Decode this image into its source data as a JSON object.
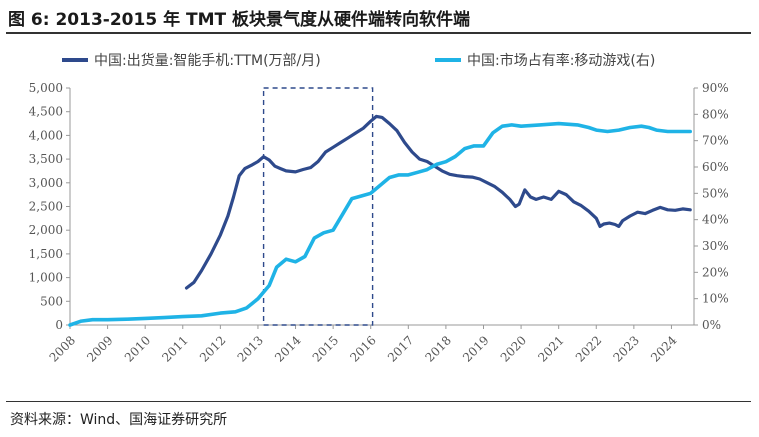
{
  "header": {
    "title": "图 6:  2013-2015 年 TMT 板块景气度从硬件端转向软件端"
  },
  "footer": {
    "source": "资料来源：Wind、国海证券研究所"
  },
  "colors": {
    "dark_series": "#2e4a8c",
    "light_series": "#1fb3e6",
    "axis": "#999999",
    "highlight_box": "#2e4a8c"
  },
  "chart_data": {
    "type": "line",
    "title": "2013-2015 年 TMT 板块景气度从硬件端转向软件端",
    "x_range": [
      2008.0,
      2024.6
    ],
    "x_ticks": [
      2008,
      2009,
      2010,
      2011,
      2012,
      2013,
      2014,
      2015,
      2016,
      2017,
      2018,
      2019,
      2020,
      2021,
      2022,
      2023,
      2024
    ],
    "y_left": {
      "range": [
        0,
        5000
      ],
      "ticks": [
        "0",
        "500",
        "1,000",
        "1,500",
        "2,000",
        "2,500",
        "3,000",
        "3,500",
        "4,000",
        "4,500",
        "5,000"
      ]
    },
    "y_right": {
      "range": [
        0,
        90
      ],
      "ticks": [
        "0%",
        "10%",
        "20%",
        "30%",
        "40%",
        "50%",
        "60%",
        "70%",
        "80%",
        "90%"
      ]
    },
    "legend_position": "top",
    "highlight_box": {
      "x_start": 2013.15,
      "x_end": 2016.05,
      "y_top": 5000
    },
    "series": [
      {
        "name": "中国:出货量:智能手机:TTM(万部/月)",
        "axis": "left",
        "points": [
          [
            2011.1,
            780
          ],
          [
            2011.3,
            900
          ],
          [
            2011.5,
            1150
          ],
          [
            2011.75,
            1500
          ],
          [
            2012.0,
            1900
          ],
          [
            2012.2,
            2300
          ],
          [
            2012.35,
            2700
          ],
          [
            2012.5,
            3150
          ],
          [
            2012.65,
            3300
          ],
          [
            2012.85,
            3380
          ],
          [
            2013.0,
            3450
          ],
          [
            2013.15,
            3550
          ],
          [
            2013.3,
            3480
          ],
          [
            2013.45,
            3350
          ],
          [
            2013.6,
            3300
          ],
          [
            2013.75,
            3250
          ],
          [
            2014.0,
            3230
          ],
          [
            2014.2,
            3280
          ],
          [
            2014.4,
            3320
          ],
          [
            2014.6,
            3450
          ],
          [
            2014.8,
            3650
          ],
          [
            2015.0,
            3750
          ],
          [
            2015.2,
            3850
          ],
          [
            2015.4,
            3950
          ],
          [
            2015.6,
            4050
          ],
          [
            2015.8,
            4150
          ],
          [
            2016.0,
            4300
          ],
          [
            2016.15,
            4400
          ],
          [
            2016.3,
            4380
          ],
          [
            2016.5,
            4250
          ],
          [
            2016.7,
            4100
          ],
          [
            2016.9,
            3850
          ],
          [
            2017.1,
            3650
          ],
          [
            2017.3,
            3500
          ],
          [
            2017.5,
            3450
          ],
          [
            2017.7,
            3350
          ],
          [
            2017.9,
            3250
          ],
          [
            2018.1,
            3180
          ],
          [
            2018.3,
            3150
          ],
          [
            2018.5,
            3130
          ],
          [
            2018.7,
            3120
          ],
          [
            2018.9,
            3080
          ],
          [
            2019.1,
            3000
          ],
          [
            2019.3,
            2920
          ],
          [
            2019.5,
            2800
          ],
          [
            2019.7,
            2650
          ],
          [
            2019.85,
            2500
          ],
          [
            2019.95,
            2550
          ],
          [
            2020.1,
            2850
          ],
          [
            2020.25,
            2700
          ],
          [
            2020.4,
            2650
          ],
          [
            2020.6,
            2700
          ],
          [
            2020.8,
            2650
          ],
          [
            2021.0,
            2820
          ],
          [
            2021.2,
            2750
          ],
          [
            2021.4,
            2600
          ],
          [
            2021.6,
            2520
          ],
          [
            2021.8,
            2400
          ],
          [
            2022.0,
            2250
          ],
          [
            2022.1,
            2080
          ],
          [
            2022.2,
            2130
          ],
          [
            2022.35,
            2150
          ],
          [
            2022.5,
            2120
          ],
          [
            2022.6,
            2080
          ],
          [
            2022.7,
            2200
          ],
          [
            2022.9,
            2300
          ],
          [
            2023.1,
            2380
          ],
          [
            2023.3,
            2350
          ],
          [
            2023.5,
            2420
          ],
          [
            2023.7,
            2480
          ],
          [
            2023.9,
            2430
          ],
          [
            2024.1,
            2420
          ],
          [
            2024.3,
            2450
          ],
          [
            2024.5,
            2430
          ]
        ]
      },
      {
        "name": "中国:市场占有率:移动游戏(右)",
        "axis": "right",
        "points": [
          [
            2008.0,
            0
          ],
          [
            2008.3,
            1.5
          ],
          [
            2008.6,
            2.0
          ],
          [
            2009.0,
            2.0
          ],
          [
            2009.5,
            2.2
          ],
          [
            2010.0,
            2.5
          ],
          [
            2010.5,
            2.8
          ],
          [
            2011.0,
            3.2
          ],
          [
            2011.5,
            3.5
          ],
          [
            2012.0,
            4.5
          ],
          [
            2012.4,
            5.0
          ],
          [
            2012.7,
            6.5
          ],
          [
            2013.0,
            10.0
          ],
          [
            2013.3,
            15.0
          ],
          [
            2013.5,
            22.0
          ],
          [
            2013.75,
            25.0
          ],
          [
            2014.0,
            24.0
          ],
          [
            2014.25,
            26.0
          ],
          [
            2014.5,
            33.0
          ],
          [
            2014.75,
            35.0
          ],
          [
            2015.0,
            36.0
          ],
          [
            2015.25,
            42.0
          ],
          [
            2015.5,
            48.0
          ],
          [
            2015.75,
            49.0
          ],
          [
            2016.0,
            50.0
          ],
          [
            2016.25,
            53.0
          ],
          [
            2016.5,
            56.0
          ],
          [
            2016.75,
            57.0
          ],
          [
            2017.0,
            57.0
          ],
          [
            2017.25,
            58.0
          ],
          [
            2017.5,
            59.0
          ],
          [
            2017.75,
            61.0
          ],
          [
            2018.0,
            62.0
          ],
          [
            2018.25,
            64.0
          ],
          [
            2018.5,
            67.0
          ],
          [
            2018.75,
            68.0
          ],
          [
            2019.0,
            68.0
          ],
          [
            2019.25,
            73.0
          ],
          [
            2019.5,
            75.5
          ],
          [
            2019.75,
            76.0
          ],
          [
            2020.0,
            75.5
          ],
          [
            2020.5,
            76.0
          ],
          [
            2021.0,
            76.5
          ],
          [
            2021.5,
            76.0
          ],
          [
            2021.8,
            75.0
          ],
          [
            2022.0,
            74.0
          ],
          [
            2022.3,
            73.5
          ],
          [
            2022.6,
            74.0
          ],
          [
            2022.9,
            75.0
          ],
          [
            2023.2,
            75.5
          ],
          [
            2023.4,
            75.0
          ],
          [
            2023.6,
            74.0
          ],
          [
            2023.9,
            73.5
          ],
          [
            2024.2,
            73.5
          ],
          [
            2024.5,
            73.5
          ]
        ]
      }
    ]
  }
}
